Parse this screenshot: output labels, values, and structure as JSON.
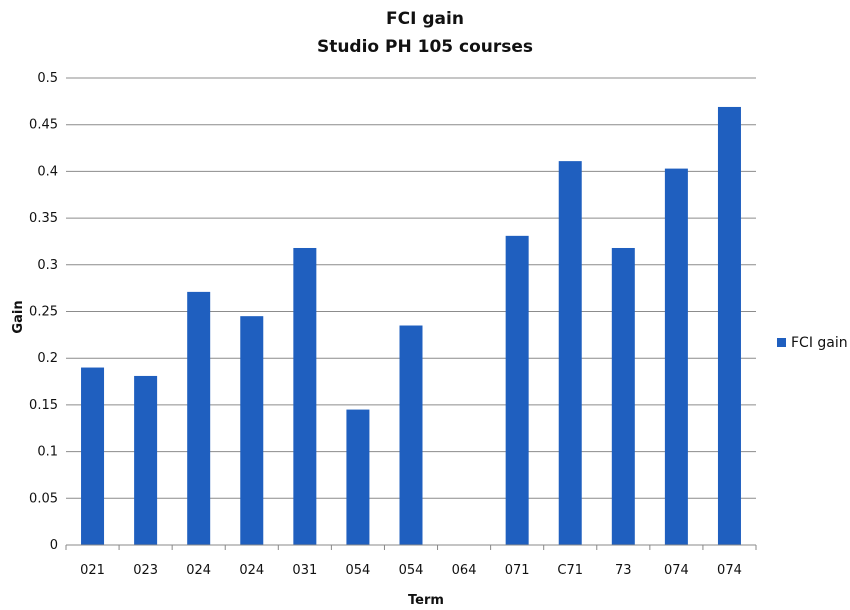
{
  "chart_data": {
    "type": "bar",
    "title": "FCI gain",
    "subtitle": "Studio PH 105 courses",
    "xlabel": "Term",
    "ylabel": "Gain",
    "categories": [
      "021",
      "023",
      "024",
      "024",
      "031",
      "054",
      "054",
      "064",
      "071",
      "C71",
      "73",
      "074",
      "074"
    ],
    "series": [
      {
        "name": "FCI gain",
        "color": "#1f5fbf",
        "values": [
          0.19,
          0.181,
          0.271,
          0.245,
          0.318,
          0.145,
          0.235,
          null,
          0.331,
          0.411,
          0.318,
          0.403,
          0.469
        ]
      }
    ],
    "ylim": [
      0,
      0.5
    ],
    "yticks": [
      "0",
      "0.05",
      "0.1",
      "0.15",
      "0.2",
      "0.25",
      "0.3",
      "0.35",
      "0.4",
      "0.45",
      "0.5"
    ],
    "grid": true,
    "legend_position": "right"
  }
}
